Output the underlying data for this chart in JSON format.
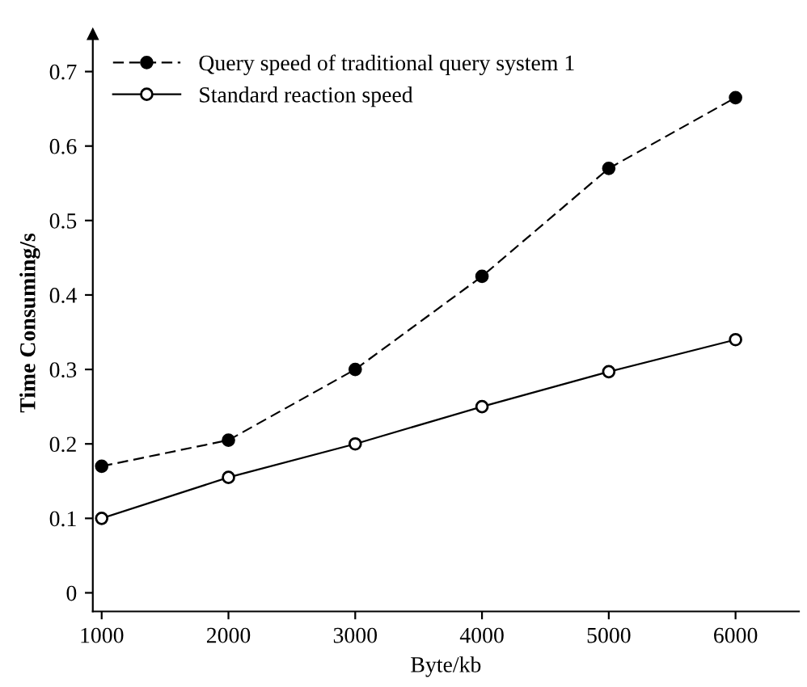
{
  "chart_data": {
    "type": "line",
    "xlabel": "Byte/kb",
    "ylabel": "Time Consuming/s",
    "x": [
      1000,
      2000,
      3000,
      4000,
      5000,
      6000
    ],
    "series": [
      {
        "name": "Query speed of traditional query system 1",
        "color": "#000000",
        "values": [
          0.17,
          0.205,
          0.3,
          0.425,
          0.57,
          0.665
        ],
        "line_style": "dashed",
        "marker": "circle"
      },
      {
        "name": "Standard reaction speed",
        "color": "#000000",
        "values": [
          0.1,
          0.155,
          0.2,
          0.25,
          0.297,
          0.34
        ],
        "line_style": "solid",
        "marker": "circle"
      }
    ],
    "xlim": [
      930,
      6500
    ],
    "ylim": [
      -0.025,
      0.75
    ],
    "xticks": [
      1000,
      2000,
      3000,
      4000,
      5000,
      6000
    ],
    "yticks": [
      0,
      0.1,
      0.2,
      0.3,
      0.4,
      0.5,
      0.6,
      0.7
    ],
    "grid": false,
    "legend": "top left"
  }
}
